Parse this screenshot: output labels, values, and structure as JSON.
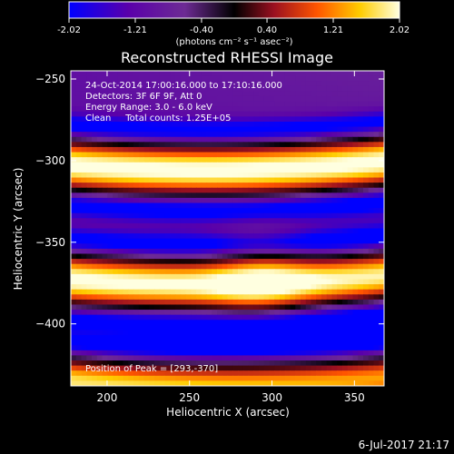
{
  "chart_data": {
    "type": "heatmap",
    "title": "Reconstructed RHESSI Image",
    "xlabel": "Heliocentric X (arcsec)",
    "ylabel": "Heliocentric Y (arcsec)",
    "xlim": [
      178,
      368
    ],
    "ylim": [
      -438,
      -245
    ],
    "x_ticks": [
      200,
      250,
      300,
      350
    ],
    "y_ticks": [
      -250,
      -300,
      -350,
      -400
    ],
    "colorbar": {
      "ticks": [
        -2.02,
        -1.21,
        -0.4,
        0.4,
        1.21,
        2.02
      ],
      "tick_labels": [
        "-2.02",
        "-1.21",
        "-0.40",
        "0.40",
        "1.21",
        "2.02"
      ],
      "units_label": "(photons cm⁻² s⁻¹ asec⁻²)",
      "colormap_stops": [
        "#0000ff",
        "#5a00aa",
        "#6d2b94",
        "#000000",
        "#9a1020",
        "#ff5500",
        "#ffcc00",
        "#ffffe0"
      ]
    },
    "annotations": [
      "24-Oct-2014 17:00:16.000 to 17:10:16.000",
      "Detectors: 3F 6F 9F, Att 0",
      "Energy Range: 3.0 - 6.0 keV",
      "Clean     Total counts: 1.25E+05"
    ],
    "peak_label": "Position of Peak = [293,-370]",
    "peak": [
      293,
      -370
    ],
    "footer": "6-Jul-2017 21:17",
    "bands": [
      {
        "y": -302,
        "peak": 2.02
      },
      {
        "y": -372,
        "peak": 2.02
      },
      {
        "y": -435,
        "peak": 1.6
      }
    ]
  }
}
